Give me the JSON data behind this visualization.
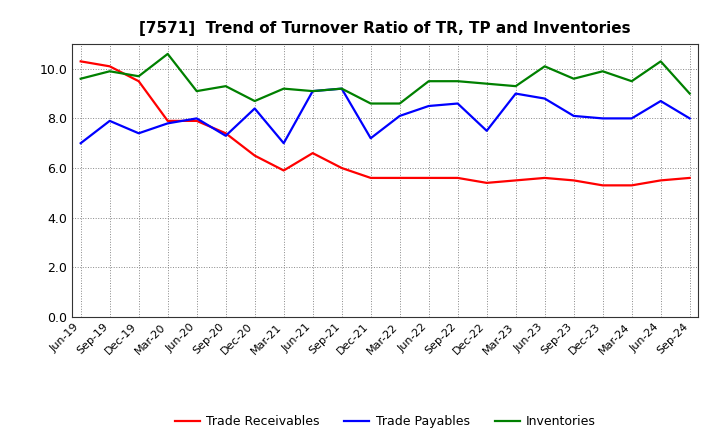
{
  "title": "[7571]  Trend of Turnover Ratio of TR, TP and Inventories",
  "labels": [
    "Jun-19",
    "Sep-19",
    "Dec-19",
    "Mar-20",
    "Jun-20",
    "Sep-20",
    "Dec-20",
    "Mar-21",
    "Jun-21",
    "Sep-21",
    "Dec-21",
    "Mar-22",
    "Jun-22",
    "Sep-22",
    "Dec-22",
    "Mar-23",
    "Jun-23",
    "Sep-23",
    "Dec-23",
    "Mar-24",
    "Jun-24",
    "Sep-24"
  ],
  "trade_receivables": [
    10.3,
    10.1,
    9.5,
    7.9,
    7.9,
    7.4,
    6.5,
    5.9,
    6.6,
    6.0,
    5.6,
    5.6,
    5.6,
    5.6,
    5.4,
    5.5,
    5.6,
    5.5,
    5.3,
    5.3,
    5.5,
    5.6
  ],
  "trade_payables": [
    7.0,
    7.9,
    7.4,
    7.8,
    8.0,
    7.3,
    8.4,
    7.0,
    9.1,
    9.2,
    7.2,
    8.1,
    8.5,
    8.6,
    7.5,
    9.0,
    8.8,
    8.1,
    8.0,
    8.0,
    8.7,
    8.0
  ],
  "inventories": [
    9.6,
    9.9,
    9.7,
    10.6,
    9.1,
    9.3,
    8.7,
    9.2,
    9.1,
    9.2,
    8.6,
    8.6,
    9.5,
    9.5,
    9.4,
    9.3,
    10.1,
    9.6,
    9.9,
    9.5,
    10.3,
    9.0
  ],
  "ylim": [
    0.0,
    11.0
  ],
  "yticks": [
    0.0,
    2.0,
    4.0,
    6.0,
    8.0,
    10.0
  ],
  "line_colors": {
    "trade_receivables": "#ff0000",
    "trade_payables": "#0000ff",
    "inventories": "#008000"
  },
  "legend_labels": [
    "Trade Receivables",
    "Trade Payables",
    "Inventories"
  ],
  "background_color": "#ffffff",
  "grid_color": "#888888",
  "title_fontsize": 11,
  "tick_fontsize": 8,
  "legend_fontsize": 9,
  "linewidth": 1.6
}
